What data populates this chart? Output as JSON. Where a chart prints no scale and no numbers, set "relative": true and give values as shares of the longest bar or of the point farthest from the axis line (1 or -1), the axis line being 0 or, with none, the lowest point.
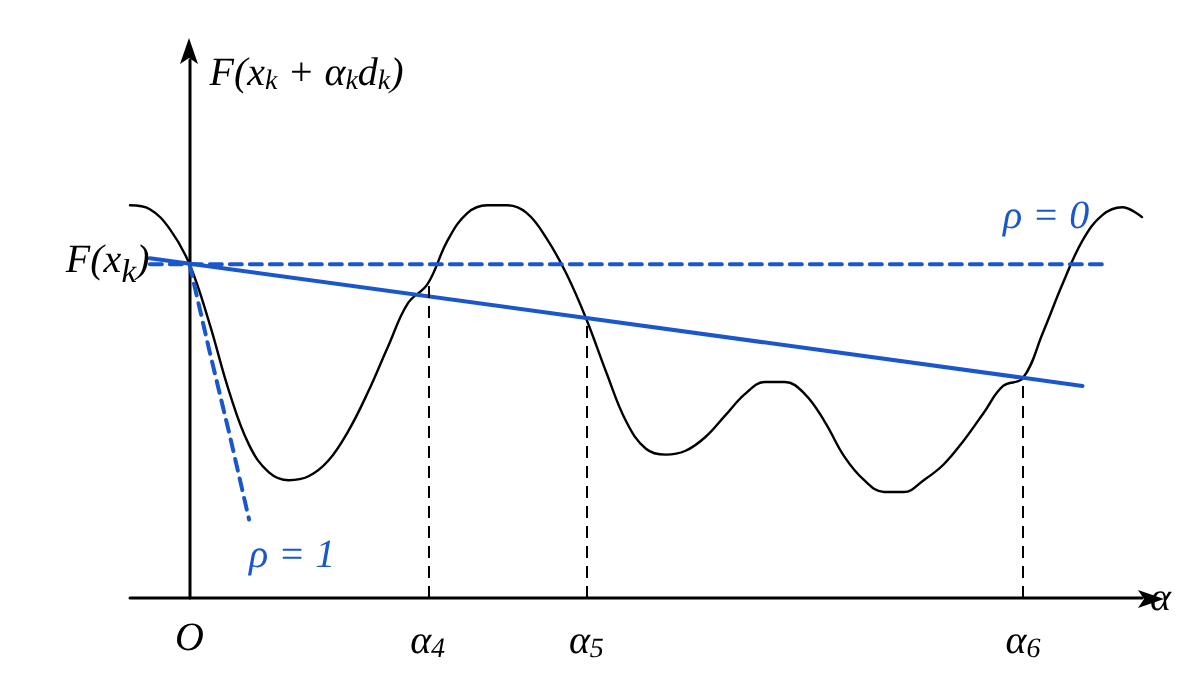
{
  "chart_data": {
    "type": "line",
    "relative": true,
    "ylabel": "F(x$_{k}$ + α$_{k}$d$_{k}$)",
    "xlabel": "α",
    "categories": [
      null,
      null,
      null,
      "O",
      null,
      null,
      null,
      null,
      null,
      null,
      null,
      null,
      null,
      null,
      null,
      "α$_{4}$",
      null,
      null,
      null,
      null,
      null,
      null,
      null,
      "α$_{5}$",
      null,
      null,
      null,
      null,
      null,
      null,
      null,
      null,
      null,
      null,
      null,
      null,
      null,
      null,
      null,
      null,
      null,
      null,
      null,
      null,
      null,
      "α$_{6}$",
      null,
      null,
      null,
      null,
      null,
      null
    ],
    "series": [
      {
        "color": "#000000",
        "values": [
          1.0,
          0.99,
          0.94,
          0.85,
          0.7,
          0.525,
          0.39,
          0.32,
          0.3,
          0.31,
          0.35,
          0.425,
          0.525,
          0.64,
          0.75,
          0.8,
          0.91,
          0.98,
          1.0,
          1.0,
          0.98,
          0.915,
          0.825,
          0.71,
          0.575,
          0.45,
          0.38,
          0.365,
          0.375,
          0.41,
          0.465,
          0.52,
          0.55,
          0.55,
          0.52,
          0.45,
          0.36,
          0.3,
          0.27,
          0.27,
          0.3,
          0.34,
          0.4,
          0.47,
          0.54,
          0.56,
          0.675,
          0.8,
          0.91,
          0.975,
          0.995,
          0.97
        ]
      },
      {
        "color": "#1a56cc",
        "line_style": "solid",
        "values": [
          null,
          0.865,
          null,
          null,
          null,
          null,
          null,
          null,
          null,
          null,
          null,
          null,
          null,
          null,
          null,
          null,
          null,
          null,
          null,
          null,
          null,
          null,
          null,
          null,
          null,
          null,
          null,
          null,
          null,
          null,
          null,
          null,
          null,
          null,
          null,
          null,
          null,
          null,
          null,
          null,
          null,
          null,
          null,
          null,
          null,
          null,
          null,
          null,
          0.54,
          null,
          null,
          null
        ]
      },
      {
        "name": "ρ = 0",
        "color": "#1a56cc",
        "line_style": "dashed",
        "values": [
          null,
          0.85,
          0.85,
          0.85,
          0.85,
          0.85,
          0.85,
          0.85,
          0.85,
          0.85,
          0.85,
          0.85,
          0.85,
          0.85,
          0.85,
          0.85,
          0.85,
          0.85,
          0.85,
          0.85,
          0.85,
          0.85,
          0.85,
          0.85,
          0.85,
          0.85,
          0.85,
          0.85,
          0.85,
          0.85,
          0.85,
          0.85,
          0.85,
          0.85,
          0.85,
          0.85,
          0.85,
          0.85,
          0.85,
          0.85,
          0.85,
          0.85,
          0.85,
          0.85,
          0.85,
          0.85,
          0.85,
          0.85,
          0.85,
          0.85,
          null,
          null
        ]
      },
      {
        "name": "ρ = 1",
        "color": "#1a56cc",
        "line_style": "dashed",
        "values": [
          null,
          null,
          null,
          0.85,
          0.63,
          0.42,
          0.2,
          null,
          null,
          null,
          null,
          null,
          null,
          null,
          null,
          null,
          null,
          null,
          null,
          null,
          null,
          null,
          null,
          null,
          null,
          null,
          null,
          null,
          null,
          null,
          null,
          null,
          null,
          null,
          null,
          null,
          null,
          null,
          null,
          null,
          null,
          null,
          null,
          null,
          null,
          null,
          null,
          null,
          null,
          null,
          null,
          null
        ]
      }
    ],
    "annotations": [
      {
        "text": "F(x$_{k}$)",
        "x": "O",
        "y": 0.85
      }
    ],
    "ref_lines": [
      {
        "axis": "x",
        "value": "α$_{4}$",
        "color": "#000000",
        "line_style": "dashed"
      },
      {
        "axis": "x",
        "value": "α$_{5}$",
        "color": "#000000",
        "line_style": "dashed"
      },
      {
        "axis": "x",
        "value": "α$_{6}$",
        "color": "#000000",
        "line_style": "dashed"
      }
    ],
    "marker": "none",
    "grid": false,
    "legend": false
  }
}
